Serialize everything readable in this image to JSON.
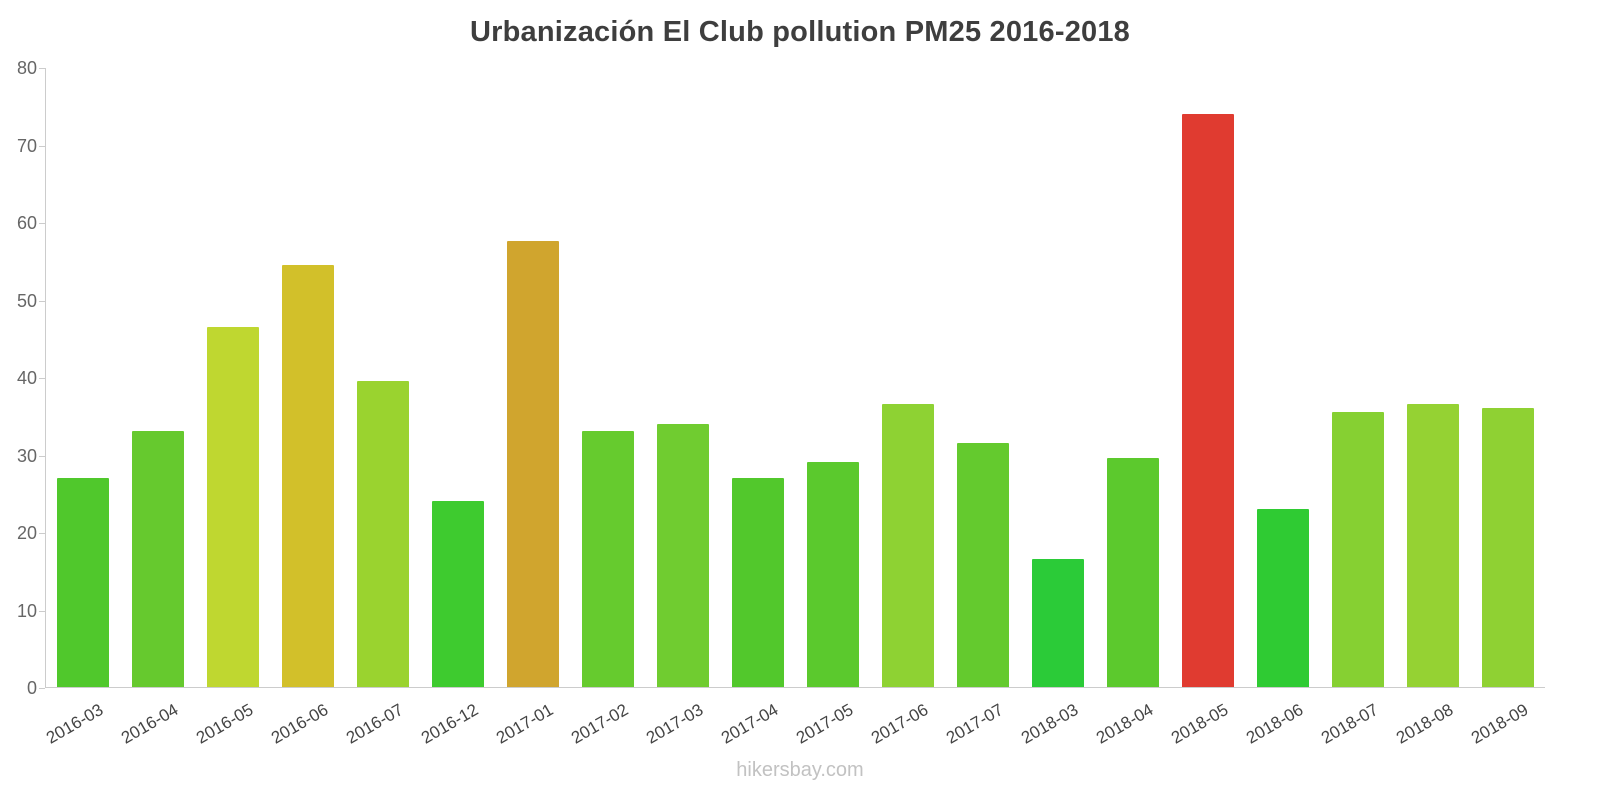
{
  "title": "Urbanización El Club pollution PM25 2016-2018",
  "footer": "hikersbay.com",
  "axis": {
    "y_max_label": "80",
    "axis_color": "#cccccc",
    "label_color": "#666666"
  },
  "chart_data": {
    "type": "bar",
    "title": "Urbanización El Club pollution PM25 2016-2018",
    "xlabel": "",
    "ylabel": "",
    "ylim": [
      0,
      80
    ],
    "yticks": [
      0,
      10,
      20,
      30,
      40,
      50,
      60,
      70,
      80
    ],
    "grid": false,
    "legend": false,
    "categories": [
      "2016-03",
      "2016-04",
      "2016-05",
      "2016-06",
      "2016-07",
      "2016-12",
      "2017-01",
      "2017-02",
      "2017-03",
      "2017-04",
      "2017-05",
      "2017-06",
      "2017-07",
      "2018-03",
      "2018-04",
      "2018-05",
      "2018-06",
      "2018-07",
      "2018-08",
      "2018-09"
    ],
    "values": [
      27,
      33,
      46.5,
      54.5,
      39.5,
      24,
      57.5,
      33,
      34,
      27,
      29,
      36.5,
      31.5,
      16.5,
      29.5,
      74,
      23,
      35.5,
      36.5,
      36
    ],
    "bar_colors": [
      "#50c82c",
      "#66c92e",
      "#bfd730",
      "#d2c02a",
      "#9ad32f",
      "#3ecb2f",
      "#d0a52e",
      "#66cb2e",
      "#70cc30",
      "#52c82c",
      "#5bc92d",
      "#8ed233",
      "#64ca2e",
      "#2bcb38",
      "#5cc92d",
      "#e03b30",
      "#2fcb33",
      "#86d032",
      "#95d233",
      "#8fd133"
    ]
  }
}
